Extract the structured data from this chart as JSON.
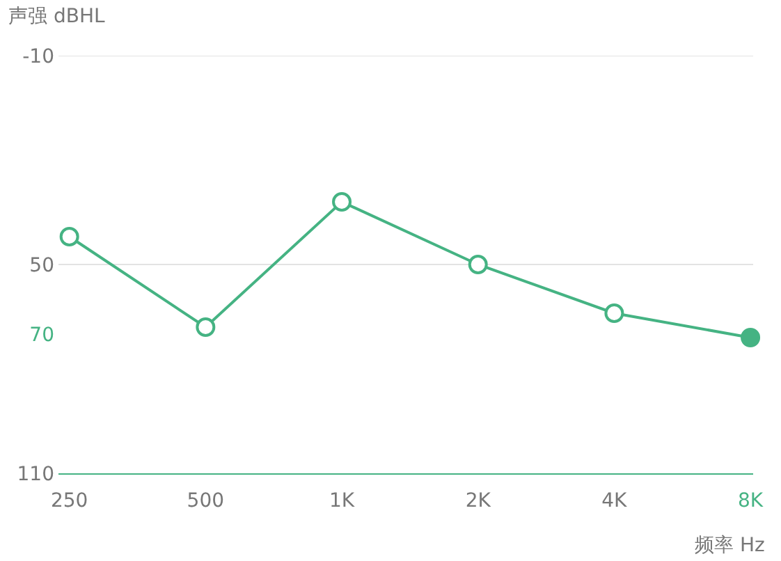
{
  "chart_data": {
    "type": "line",
    "ylabel": "声强 dBHL",
    "xlabel": "频率 Hz",
    "categories": [
      "250",
      "500",
      "1K",
      "2K",
      "4K",
      "8K"
    ],
    "series": [
      {
        "color": "#45b383",
        "values": [
          42,
          68,
          32,
          50,
          64,
          71
        ],
        "colors": [
          "#ffffff",
          "#ffffff",
          "#ffffff",
          "#ffffff",
          "#ffffff",
          "#45b383"
        ]
      }
    ],
    "ylim": [
      110,
      -10
    ],
    "yticks": [
      -10,
      50,
      {
        "value": 70,
        "label": "70"
      },
      110
    ],
    "grid": "y",
    "marker": "circle",
    "line_style": "solid"
  }
}
